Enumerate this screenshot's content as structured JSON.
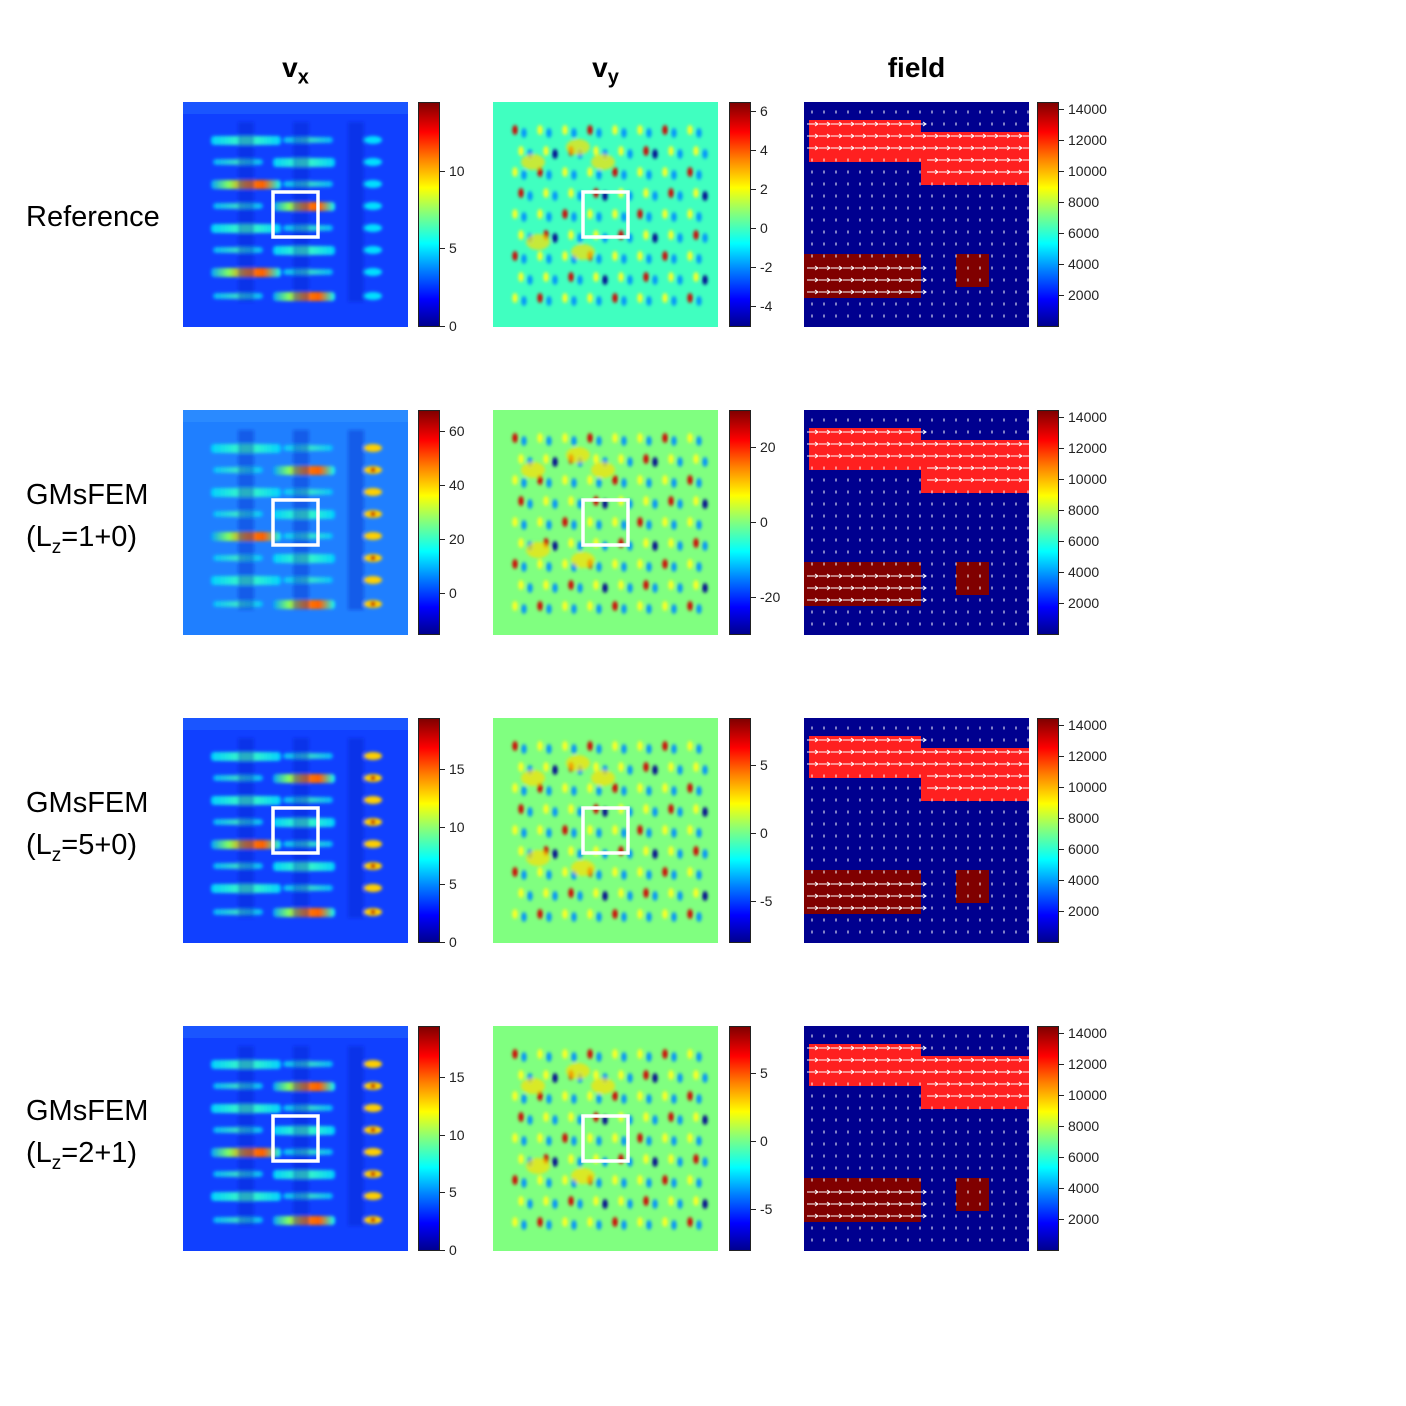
{
  "columns": [
    {
      "base": "v",
      "sub": "x"
    },
    {
      "base": "v",
      "sub": "y"
    },
    {
      "base": "field",
      "sub": ""
    }
  ],
  "rows": [
    {
      "line1": "Reference",
      "line2_pre": "",
      "line2_sub": "",
      "line2_post": "",
      "vx_ticks": [
        {
          "v": 10,
          "t": "10"
        },
        {
          "v": 5,
          "t": "5"
        },
        {
          "v": 0,
          "t": "0"
        }
      ],
      "vx_range": [
        0,
        14.5
      ],
      "vy_ticks": [
        {
          "v": 6,
          "t": "6"
        },
        {
          "v": 4,
          "t": "4"
        },
        {
          "v": 2,
          "t": "2"
        },
        {
          "v": 0,
          "t": "0"
        },
        {
          "v": -2,
          "t": "-2"
        },
        {
          "v": -4,
          "t": "-4"
        }
      ],
      "vy_range": [
        -5,
        6.5
      ]
    },
    {
      "line1": "GMsFEM",
      "line2_pre": "(L",
      "line2_sub": "z",
      "line2_post": "=1+0)",
      "vx_ticks": [
        {
          "v": 60,
          "t": "60"
        },
        {
          "v": 40,
          "t": "40"
        },
        {
          "v": 20,
          "t": "20"
        },
        {
          "v": 0,
          "t": "0"
        }
      ],
      "vx_range": [
        -15,
        68
      ],
      "vy_ticks": [
        {
          "v": 20,
          "t": "20"
        },
        {
          "v": 0,
          "t": "0"
        },
        {
          "v": -20,
          "t": "-20"
        }
      ],
      "vy_range": [
        -30,
        30
      ]
    },
    {
      "line1": "GMsFEM",
      "line2_pre": "(L",
      "line2_sub": "z",
      "line2_post": "=5+0)",
      "vx_ticks": [
        {
          "v": 15,
          "t": "15"
        },
        {
          "v": 10,
          "t": "10"
        },
        {
          "v": 5,
          "t": "5"
        },
        {
          "v": 0,
          "t": "0"
        }
      ],
      "vx_range": [
        0,
        19.5
      ],
      "vy_ticks": [
        {
          "v": 5,
          "t": "5"
        },
        {
          "v": 0,
          "t": "0"
        },
        {
          "v": -5,
          "t": "-5"
        }
      ],
      "vy_range": [
        -8,
        8.5
      ]
    },
    {
      "line1": "GMsFEM",
      "line2_pre": "(L",
      "line2_sub": "z",
      "line2_post": "=2+1)",
      "vx_ticks": [
        {
          "v": 15,
          "t": "15"
        },
        {
          "v": 10,
          "t": "10"
        },
        {
          "v": 5,
          "t": "5"
        },
        {
          "v": 0,
          "t": "0"
        }
      ],
      "vx_range": [
        0,
        19.5
      ],
      "vy_ticks": [
        {
          "v": 5,
          "t": "5"
        },
        {
          "v": 0,
          "t": "0"
        },
        {
          "v": -5,
          "t": "-5"
        }
      ],
      "vy_range": [
        -8,
        8.5
      ]
    }
  ],
  "field_ticks": [
    {
      "v": 14000,
      "t": "14000"
    },
    {
      "v": 12000,
      "t": "12000"
    },
    {
      "v": 10000,
      "t": "10000"
    },
    {
      "v": 8000,
      "t": "8000"
    },
    {
      "v": 6000,
      "t": "6000"
    },
    {
      "v": 4000,
      "t": "4000"
    },
    {
      "v": 2000,
      "t": "2000"
    }
  ],
  "field_range": [
    0,
    14500
  ],
  "colors": {
    "colormap": "jet",
    "highlight_box": "#ffffff",
    "field_background": "#00008f",
    "field_red": "#ff2020",
    "field_darkred": "#800000",
    "arrows": "#ffffff"
  }
}
